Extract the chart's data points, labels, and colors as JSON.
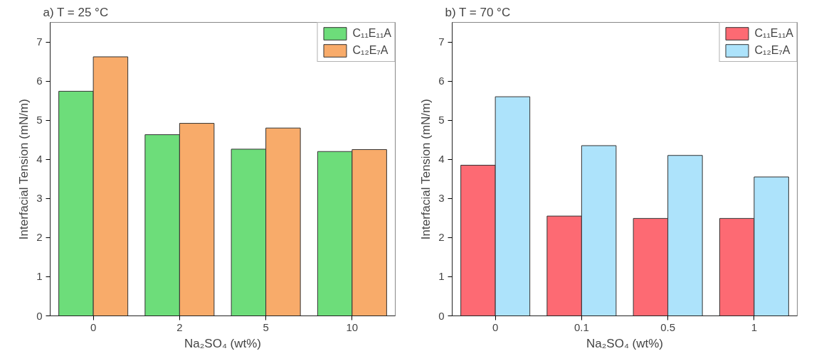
{
  "chart_data": [
    {
      "type": "bar",
      "title": "a) T = 25 °C",
      "xlabel": "Na₂SO₄ (wt%)",
      "ylabel": "Interfacial Tension (mN/m)",
      "categories": [
        "0",
        "2",
        "5",
        "10"
      ],
      "series": [
        {
          "name": "C₁₁E₁₁A",
          "color": "#6ddd7a",
          "values": [
            5.74,
            4.63,
            4.26,
            4.2
          ]
        },
        {
          "name": "C₁₂E₇A",
          "color": "#f8ab6a",
          "values": [
            6.62,
            4.92,
            4.8,
            4.25
          ]
        }
      ],
      "ylim": [
        0,
        7.5
      ],
      "yticks": [
        0,
        1,
        2,
        3,
        4,
        5,
        6,
        7
      ],
      "grid": false,
      "legend": "top right"
    },
    {
      "type": "bar",
      "title": "b) T = 70 °C",
      "xlabel": "Na₂SO₄ (wt%)",
      "ylabel": "Interfacial Tension (mN/m)",
      "categories": [
        "0",
        "0.1",
        "0.5",
        "1"
      ],
      "series": [
        {
          "name": "C₁₁E₁₁A",
          "color": "#fd6a73",
          "values": [
            3.85,
            2.55,
            2.49,
            2.49
          ]
        },
        {
          "name": "C₁₂E₇A",
          "color": "#ade3fb",
          "values": [
            5.6,
            4.35,
            4.1,
            3.55
          ]
        }
      ],
      "ylim": [
        0,
        7.5
      ],
      "yticks": [
        0,
        1,
        2,
        3,
        4,
        5,
        6,
        7
      ],
      "grid": false,
      "legend": "top right"
    }
  ]
}
